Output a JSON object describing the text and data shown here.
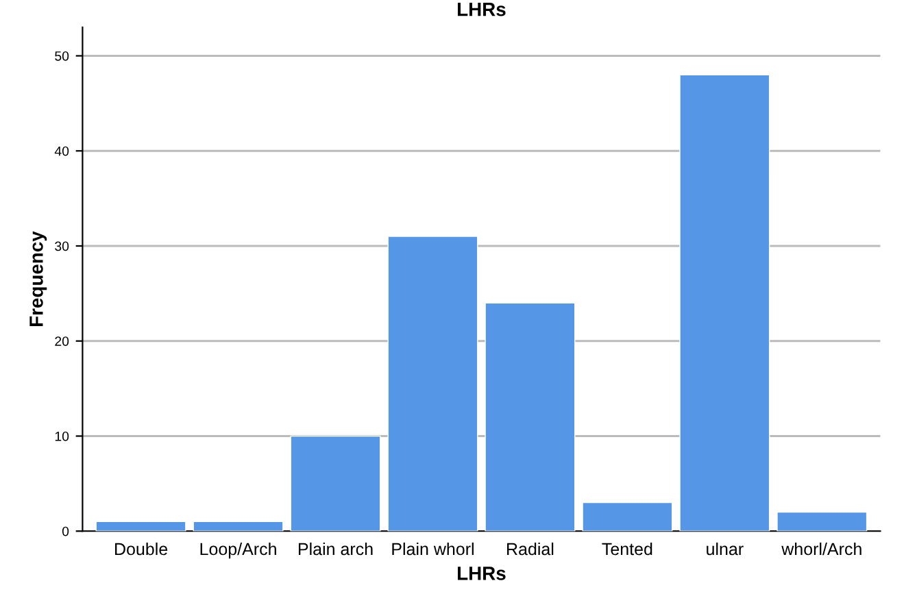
{
  "chart_data": {
    "type": "bar",
    "title": "LHRs",
    "xlabel": "LHRs",
    "ylabel": "Frequency",
    "categories": [
      "Double",
      "Loop/Arch",
      "Plain arch",
      "Plain whorl",
      "Radial",
      "Tented",
      "ulnar",
      "whorl/Arch"
    ],
    "values": [
      1,
      1,
      10,
      31,
      24,
      3,
      48,
      2
    ],
    "color": "#5596e6",
    "ylim": [
      0,
      53
    ],
    "yticks": [
      0,
      10,
      20,
      30,
      40,
      50
    ],
    "grid": "y"
  }
}
